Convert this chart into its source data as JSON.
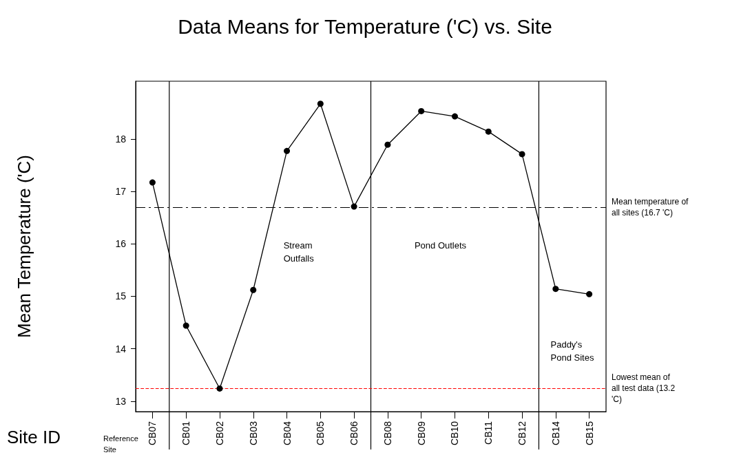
{
  "chart_data": {
    "type": "line",
    "title": "Data Means for Temperature ('C) vs. Site",
    "xlabel": "Site ID",
    "ylabel": "Mean Temperature ('C)",
    "categories": [
      "CB07",
      "CB01",
      "CB02",
      "CB03",
      "CB04",
      "CB05",
      "CB06",
      "CB08",
      "CB09",
      "CB10",
      "CB11",
      "CB12",
      "CB14",
      "CB15"
    ],
    "series": [
      {
        "color": "#000000",
        "values": [
          17.17,
          14.44,
          13.24,
          15.12,
          17.77,
          18.67,
          16.71,
          17.89,
          18.53,
          18.43,
          18.14,
          17.71,
          15.14,
          15.04
        ]
      }
    ],
    "ylim": [
      12.8,
      19.1
    ],
    "yticks": [
      13,
      14,
      15,
      16,
      17,
      18
    ],
    "grid": false,
    "marker": "circle",
    "line_style": "solid",
    "ref_lines": [
      {
        "axis": "y",
        "value": 16.7,
        "label": "Mean temperature of all sites (16.7 'C)",
        "color": "#000000",
        "line_style": "dashed"
      },
      {
        "axis": "y",
        "value": 13.24,
        "label": "Lowest mean of all test data (13.2 'C)",
        "color": "#ff0000",
        "line_style": "dashed"
      }
    ],
    "annotations": [
      "Reference Site",
      "Stream Outfalls",
      "Pond Outlets",
      "Paddy's Pond Sites"
    ]
  }
}
